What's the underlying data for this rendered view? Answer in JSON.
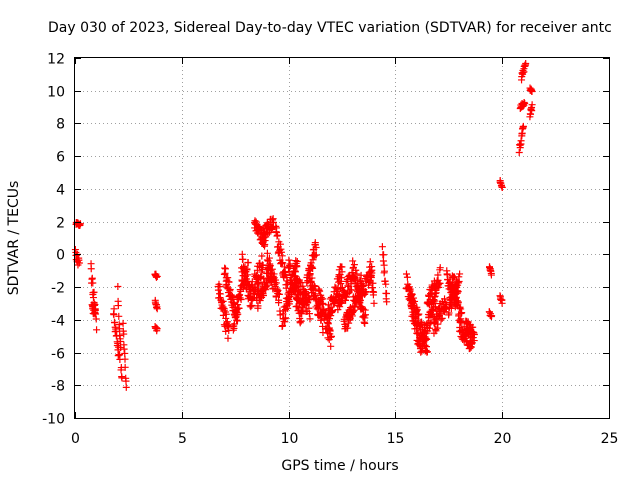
{
  "chart_data": {
    "type": "scatter",
    "title": "Day 030 of 2023, Sidereal Day-to-day VTEC variation (SDTVAR) for receiver antc",
    "xlabel": "GPS time / hours",
    "ylabel": "SDTVAR / TECUs",
    "xlim": [
      0,
      25
    ],
    "ylim": [
      -10,
      12
    ],
    "xticks": [
      0,
      5,
      10,
      15,
      20,
      25
    ],
    "yticks": [
      -10,
      -8,
      -6,
      -4,
      -2,
      0,
      2,
      4,
      6,
      8,
      10,
      12
    ],
    "xtick_labels": [
      "0",
      "5",
      "10",
      "15",
      "20",
      "25"
    ],
    "ytick_labels": [
      "-10",
      "-8",
      "-6",
      "-4",
      "-2",
      "0",
      "2",
      "4",
      "6",
      "8",
      "10",
      "12"
    ],
    "grid": true,
    "marker": "+",
    "color": "#ff0000",
    "segments": [
      {
        "t0": 0.0,
        "t1": 0.2,
        "v0": 0.2,
        "v1": -0.6,
        "sp": 0.6
      },
      {
        "t0": 0.05,
        "t1": 0.25,
        "v0": 1.9,
        "v1": 1.8,
        "sp": 0.15
      },
      {
        "t0": 0.75,
        "t1": 1.0,
        "v0": -1.0,
        "v1": -4.3,
        "sp": 1.0
      },
      {
        "t0": 0.8,
        "t1": 0.95,
        "v0": -3.0,
        "v1": -3.6,
        "sp": 0.8
      },
      {
        "t0": 1.8,
        "t1": 2.1,
        "v0": -3.4,
        "v1": -6.8,
        "sp": 1.0
      },
      {
        "t0": 2.0,
        "t1": 2.2,
        "v0": -2.0,
        "v1": -8.0,
        "sp": 1.0
      },
      {
        "t0": 2.25,
        "t1": 2.4,
        "v0": -4.2,
        "v1": -8.2,
        "sp": 0.4
      },
      {
        "t0": 3.75,
        "t1": 3.85,
        "v0": -1.2,
        "v1": -1.4,
        "sp": 0.2
      },
      {
        "t0": 3.75,
        "t1": 3.85,
        "v0": -2.9,
        "v1": -3.3,
        "sp": 0.2
      },
      {
        "t0": 3.75,
        "t1": 3.85,
        "v0": -4.4,
        "v1": -4.6,
        "sp": 0.2
      },
      {
        "t0": 6.7,
        "t1": 7.2,
        "v0": -2.0,
        "v1": -4.9,
        "sp": 1.2
      },
      {
        "t0": 7.0,
        "t1": 7.6,
        "v0": -1.2,
        "v1": -3.8,
        "sp": 1.2
      },
      {
        "t0": 7.4,
        "t1": 8.1,
        "v0": -4.3,
        "v1": -0.6,
        "sp": 1.2
      },
      {
        "t0": 7.8,
        "t1": 8.3,
        "v0": -0.4,
        "v1": -3.2,
        "sp": 1.2
      },
      {
        "t0": 8.2,
        "t1": 8.8,
        "v0": -2.5,
        "v1": -0.5,
        "sp": 1.2
      },
      {
        "t0": 8.4,
        "t1": 8.9,
        "v0": 1.8,
        "v1": 0.8,
        "sp": 0.8
      },
      {
        "t0": 8.8,
        "t1": 9.3,
        "v0": 1.2,
        "v1": 2.0,
        "sp": 0.8
      },
      {
        "t0": 8.5,
        "t1": 9.2,
        "v0": -2.9,
        "v1": -1.0,
        "sp": 1.2
      },
      {
        "t0": 9.0,
        "t1": 9.6,
        "v0": -0.3,
        "v1": -3.1,
        "sp": 1.2
      },
      {
        "t0": 9.4,
        "t1": 10.0,
        "v0": 1.4,
        "v1": -2.5,
        "sp": 1.2
      },
      {
        "t0": 9.7,
        "t1": 10.4,
        "v0": -4.2,
        "v1": -0.6,
        "sp": 1.2
      },
      {
        "t0": 10.0,
        "t1": 10.6,
        "v0": -0.8,
        "v1": -4.0,
        "sp": 1.2
      },
      {
        "t0": 10.3,
        "t1": 11.0,
        "v0": -1.6,
        "v1": -3.4,
        "sp": 1.2
      },
      {
        "t0": 10.6,
        "t1": 11.3,
        "v0": -3.4,
        "v1": 0.5,
        "sp": 1.2
      },
      {
        "t0": 11.0,
        "t1": 11.6,
        "v0": -1.4,
        "v1": -4.2,
        "sp": 1.2
      },
      {
        "t0": 11.4,
        "t1": 12.0,
        "v0": -2.2,
        "v1": -5.5,
        "sp": 1.2
      },
      {
        "t0": 11.8,
        "t1": 12.5,
        "v0": -4.0,
        "v1": -1.0,
        "sp": 1.2
      },
      {
        "t0": 12.3,
        "t1": 13.0,
        "v0": -3.0,
        "v1": -1.5,
        "sp": 1.2
      },
      {
        "t0": 12.6,
        "t1": 13.4,
        "v0": -4.5,
        "v1": -1.8,
        "sp": 1.2
      },
      {
        "t0": 13.0,
        "t1": 13.6,
        "v0": -0.7,
        "v1": -4.0,
        "sp": 1.2
      },
      {
        "t0": 13.3,
        "t1": 13.9,
        "v0": -2.6,
        "v1": -1.2,
        "sp": 1.0
      },
      {
        "t0": 13.8,
        "t1": 14.0,
        "v0": -0.6,
        "v1": -2.6,
        "sp": 0.8
      },
      {
        "t0": 14.4,
        "t1": 14.6,
        "v0": 0.3,
        "v1": -2.8,
        "sp": 0.8
      },
      {
        "t0": 15.5,
        "t1": 16.2,
        "v0": -1.5,
        "v1": -6.0,
        "sp": 1.2
      },
      {
        "t0": 15.7,
        "t1": 16.5,
        "v0": -2.4,
        "v1": -5.8,
        "sp": 1.2
      },
      {
        "t0": 16.2,
        "t1": 16.9,
        "v0": -5.6,
        "v1": -2.6,
        "sp": 1.2
      },
      {
        "t0": 16.5,
        "t1": 17.1,
        "v0": -3.0,
        "v1": -1.4,
        "sp": 1.2
      },
      {
        "t0": 16.8,
        "t1": 17.4,
        "v0": -4.5,
        "v1": -2.7,
        "sp": 1.2
      },
      {
        "t0": 17.4,
        "t1": 17.9,
        "v0": -1.5,
        "v1": -2.0,
        "sp": 1.0
      },
      {
        "t0": 17.5,
        "t1": 18.0,
        "v0": -3.2,
        "v1": -1.6,
        "sp": 1.0
      },
      {
        "t0": 17.6,
        "t1": 18.1,
        "v0": -2.0,
        "v1": -4.0,
        "sp": 1.0
      },
      {
        "t0": 18.0,
        "t1": 18.6,
        "v0": -4.5,
        "v1": -5.5,
        "sp": 1.0
      },
      {
        "t0": 18.3,
        "t1": 18.7,
        "v0": -4.3,
        "v1": -5.0,
        "sp": 0.8
      },
      {
        "t0": 19.4,
        "t1": 19.5,
        "v0": -0.7,
        "v1": -1.3,
        "sp": 0.2
      },
      {
        "t0": 19.4,
        "t1": 19.5,
        "v0": -3.6,
        "v1": -3.8,
        "sp": 0.2
      },
      {
        "t0": 19.9,
        "t1": 20.0,
        "v0": 4.5,
        "v1": 4.0,
        "sp": 0.2
      },
      {
        "t0": 19.9,
        "t1": 20.0,
        "v0": -2.6,
        "v1": -2.9,
        "sp": 0.2
      },
      {
        "t0": 20.8,
        "t1": 21.0,
        "v0": 6.4,
        "v1": 7.8,
        "sp": 0.4
      },
      {
        "t0": 20.85,
        "t1": 21.05,
        "v0": 9.0,
        "v1": 9.3,
        "sp": 0.3
      },
      {
        "t0": 20.9,
        "t1": 21.1,
        "v0": 10.8,
        "v1": 11.6,
        "sp": 0.3
      },
      {
        "t0": 21.3,
        "t1": 21.4,
        "v0": 10.1,
        "v1": 10.0,
        "sp": 0.15
      },
      {
        "t0": 21.3,
        "t1": 21.4,
        "v0": 8.5,
        "v1": 9.0,
        "sp": 0.3
      }
    ]
  }
}
